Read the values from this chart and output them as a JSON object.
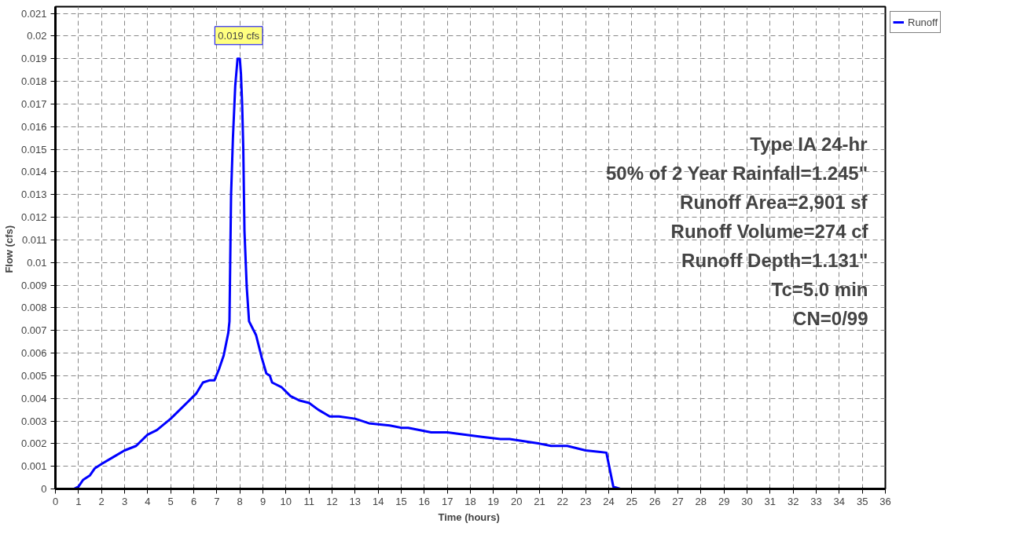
{
  "chart_data": {
    "type": "line",
    "xlabel": "Time  (hours)",
    "ylabel": "Flow  (cfs)",
    "xlim": [
      0,
      36
    ],
    "ylim": [
      0,
      0.0213
    ],
    "xticks": [
      0,
      1,
      2,
      3,
      4,
      5,
      6,
      7,
      8,
      9,
      10,
      11,
      12,
      13,
      14,
      15,
      16,
      17,
      18,
      19,
      20,
      21,
      22,
      23,
      24,
      25,
      26,
      27,
      28,
      29,
      30,
      31,
      32,
      33,
      34,
      35,
      36
    ],
    "yticks": [
      0,
      0.001,
      0.002,
      0.003,
      0.004,
      0.005,
      0.006,
      0.007,
      0.008,
      0.009,
      0.01,
      0.011,
      0.012,
      0.013,
      0.014,
      0.015,
      0.016,
      0.017,
      0.018,
      0.019,
      0.02,
      0.021
    ],
    "grid": true,
    "legend": "top right",
    "line_style": "solid",
    "marker": "none",
    "x": [
      0,
      0.5,
      0.8,
      1.0,
      1.2,
      1.5,
      1.7,
      2.0,
      2.5,
      3.0,
      3.5,
      4.0,
      4.4,
      5.0,
      5.4,
      5.9,
      6.1,
      6.4,
      6.7,
      6.9,
      7.1,
      7.3,
      7.5,
      7.55,
      7.62,
      7.7,
      7.8,
      7.9,
      8.0,
      8.05,
      8.1,
      8.15,
      8.2,
      8.3,
      8.4,
      8.7,
      8.95,
      9.15,
      9.3,
      9.4,
      9.8,
      10.2,
      10.6,
      11.0,
      11.4,
      11.9,
      12.3,
      13.0,
      13.6,
      14.5,
      15.0,
      15.3,
      16.3,
      17.0,
      18.5,
      19.3,
      19.7,
      21.0,
      21.5,
      22.2,
      23.0,
      23.9,
      24.2,
      24.5,
      36
    ],
    "series": [
      {
        "name": "Runoff",
        "color": "#0000ff",
        "values": [
          0,
          0,
          0,
          0.0001,
          0.0004,
          0.0006,
          0.0009,
          0.0011,
          0.0014,
          0.0017,
          0.0019,
          0.0024,
          0.0026,
          0.0031,
          0.0035,
          0.004,
          0.0042,
          0.0047,
          0.0048,
          0.0048,
          0.0053,
          0.0059,
          0.0069,
          0.0074,
          0.013,
          0.0155,
          0.0178,
          0.019,
          0.019,
          0.0183,
          0.017,
          0.015,
          0.0114,
          0.0089,
          0.0074,
          0.0068,
          0.0058,
          0.0051,
          0.005,
          0.0047,
          0.0045,
          0.0041,
          0.0039,
          0.0038,
          0.0035,
          0.0032,
          0.0032,
          0.0031,
          0.0029,
          0.0028,
          0.0027,
          0.0027,
          0.0025,
          0.0025,
          0.0023,
          0.0022,
          0.0022,
          0.002,
          0.0019,
          0.0019,
          0.0017,
          0.0016,
          0.0001,
          0,
          0
        ]
      }
    ],
    "annotations": [
      {
        "text": "0.019 cfs",
        "x": 7.95,
        "y": 0.019
      },
      "Type IA 24-hr",
      "50% of 2 Year Rainfall=1.245\"",
      "Runoff Area=2,901 sf",
      "Runoff Volume=274 cf",
      "Runoff Depth=1.131\"",
      "Tc=5.0 min",
      "CN=0/99"
    ]
  }
}
